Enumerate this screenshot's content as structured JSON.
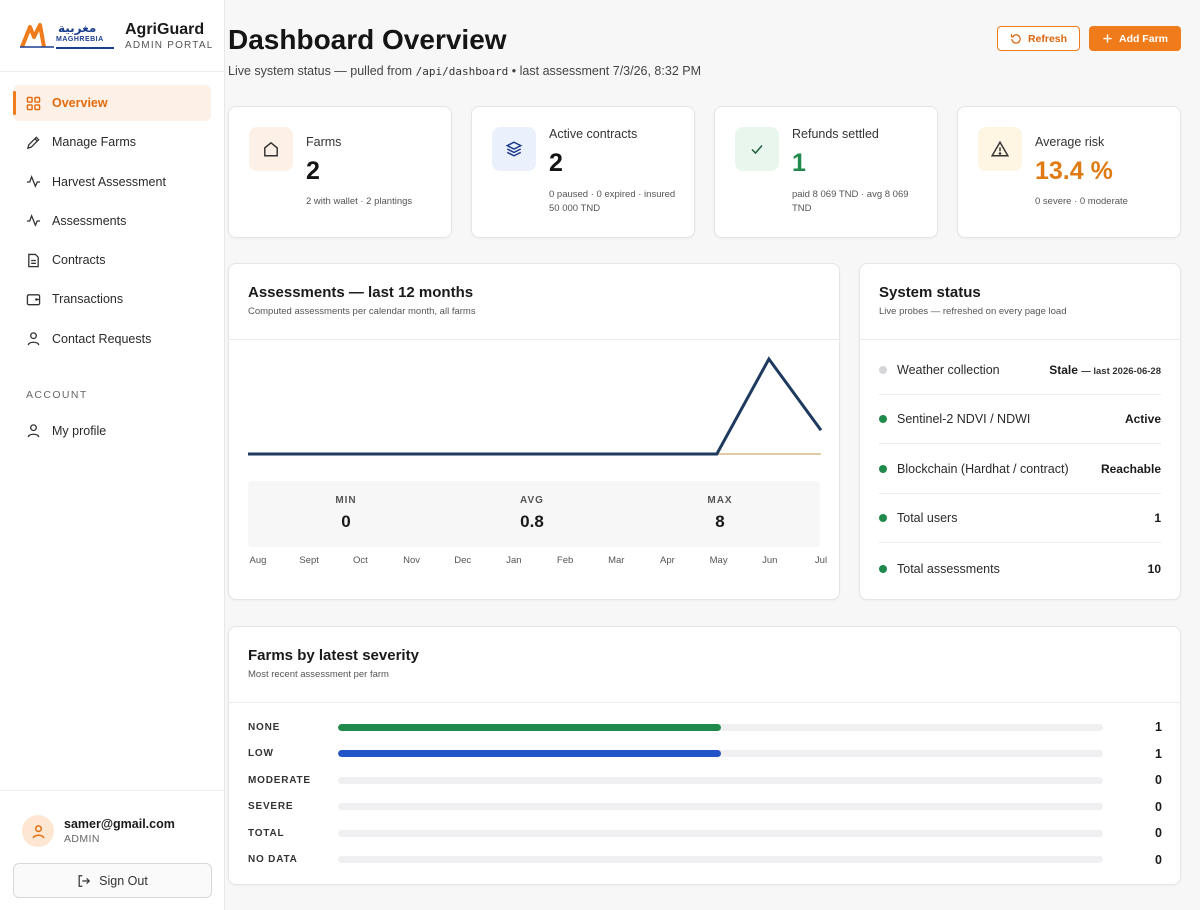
{
  "brand": {
    "logo_arabic": "مغربية",
    "logo_latin": "MAGHREBIA",
    "name": "AgriGuard",
    "subtitle": "ADMIN PORTAL"
  },
  "sidebar": {
    "items": [
      {
        "label": "Overview",
        "icon": "grid-icon",
        "active": true
      },
      {
        "label": "Manage Farms",
        "icon": "pencil-icon"
      },
      {
        "label": "Harvest Assessment",
        "icon": "activity-icon"
      },
      {
        "label": "Assessments",
        "icon": "activity-icon"
      },
      {
        "label": "Contracts",
        "icon": "document-icon"
      },
      {
        "label": "Transactions",
        "icon": "wallet-icon"
      },
      {
        "label": "Contact Requests",
        "icon": "user-icon"
      }
    ],
    "account_section": "ACCOUNT",
    "account_items": [
      {
        "label": "My profile",
        "icon": "user-icon"
      }
    ],
    "user": {
      "email": "samer@gmail.com",
      "role": "ADMIN"
    },
    "sign_out": "Sign Out"
  },
  "header": {
    "title": "Dashboard Overview",
    "subtitle_prefix": "Live system status — pulled from",
    "endpoint": "/api/dashboard",
    "subtitle_suffix": "• last assessment 7/3/26, 8:32 PM",
    "refresh_label": "Refresh",
    "add_farm_label": "Add Farm"
  },
  "stats": [
    {
      "label": "Farms",
      "value": "2",
      "note": "2 with wallet · 2 plantings",
      "icon": "home-icon"
    },
    {
      "label": "Active contracts",
      "value": "2",
      "note": "0 paused · 0 expired · insured 50 000 TND",
      "icon": "layers-icon"
    },
    {
      "label": "Refunds settled",
      "value": "1",
      "note": "paid 8 069 TND · avg 8 069 TND",
      "icon": "check-icon"
    },
    {
      "label": "Average risk",
      "value": "13.4 %",
      "note": "0 severe · 0 moderate",
      "icon": "warning-icon"
    }
  ],
  "colors": {
    "accent": "#ef7b1a",
    "success": "#1f8a4c",
    "risk": "#e07b14",
    "line": "#1e3a5f",
    "blue": "#2354c7"
  },
  "assessments_chart": {
    "title": "Assessments — last 12 months",
    "subtitle": "Computed assessments per calendar month, all farms",
    "min_label": "MIN",
    "min_value": "0",
    "avg_label": "AVG",
    "avg_value": "0.8",
    "max_label": "MAX",
    "max_value": "8"
  },
  "chart_data": {
    "type": "line",
    "title": "Assessments — last 12 months",
    "categories": [
      "Aug",
      "Sept",
      "Oct",
      "Nov",
      "Dec",
      "Jan",
      "Feb",
      "Mar",
      "Apr",
      "May",
      "Jun",
      "Jul"
    ],
    "values": [
      0,
      0,
      0,
      0,
      0,
      0,
      0,
      0,
      0,
      0,
      8,
      2
    ],
    "ylim": [
      0,
      8
    ],
    "grid": false
  },
  "system_status": {
    "title": "System status",
    "subtitle": "Live probes — refreshed on every page load",
    "rows": [
      {
        "name": "Weather collection",
        "value": "Stale",
        "detail": "— last 2026-06-28",
        "status": "stale"
      },
      {
        "name": "Sentinel-2 NDVI / NDWI",
        "value": "Active",
        "detail": "",
        "status": "ok"
      },
      {
        "name": "Blockchain (Hardhat / contract)",
        "value": "Reachable",
        "detail": "",
        "status": "ok"
      },
      {
        "name": "Total users",
        "value": "1",
        "detail": "",
        "status": "ok"
      },
      {
        "name": "Total assessments",
        "value": "10",
        "detail": "",
        "status": "ok"
      }
    ]
  },
  "severity": {
    "title": "Farms by latest severity",
    "subtitle": "Most recent assessment per farm",
    "max": 2,
    "rows": [
      {
        "label": "NONE",
        "count": "1",
        "value": 1,
        "color": "#1f8a4c"
      },
      {
        "label": "LOW",
        "count": "1",
        "value": 1,
        "color": "#2354c7"
      },
      {
        "label": "MODERATE",
        "count": "0",
        "value": 0,
        "color": "#e07b14"
      },
      {
        "label": "SEVERE",
        "count": "0",
        "value": 0,
        "color": "#c62828"
      },
      {
        "label": "TOTAL",
        "count": "0",
        "value": 0,
        "color": "#6b21a8"
      },
      {
        "label": "NO DATA",
        "count": "0",
        "value": 0,
        "color": "#9e9e9e"
      }
    ]
  }
}
